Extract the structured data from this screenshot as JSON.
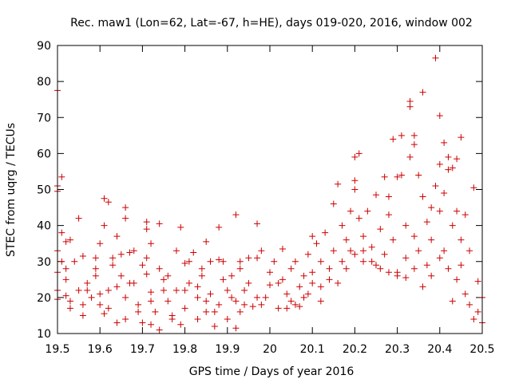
{
  "chart_data": {
    "type": "scatter",
    "title": "Rec. maw1 (Lon=62, Lat=-67, h=HE), days 019-020, 2016, window 002",
    "xlabel": "GPS time / Days of year 2016",
    "ylabel": "STEC from uqrg / TECUs",
    "xlim": [
      19.5,
      20.5
    ],
    "ylim": [
      10,
      90
    ],
    "xticks": [
      "19.5",
      "19.6",
      "19.7",
      "19.8",
      "19.9",
      "20",
      "20.1",
      "20.2",
      "20.3",
      "20.4",
      "20.5"
    ],
    "yticks": [
      "10",
      "20",
      "30",
      "40",
      "50",
      "60",
      "70",
      "80",
      "90"
    ],
    "grid": false,
    "legend": "none",
    "marker": "plus",
    "color": "#cc0000",
    "points": [
      [
        19.5,
        77.5
      ],
      [
        19.5,
        51
      ],
      [
        19.5,
        49.5
      ],
      [
        19.51,
        53.5
      ],
      [
        19.51,
        38
      ],
      [
        19.52,
        35.5
      ],
      [
        19.53,
        36
      ],
      [
        19.55,
        42
      ],
      [
        19.56,
        31.5
      ],
      [
        19.59,
        31
      ],
      [
        19.61,
        47.5
      ],
      [
        19.62,
        46.5
      ],
      [
        19.61,
        40
      ],
      [
        19.64,
        37
      ],
      [
        19.66,
        45
      ],
      [
        19.66,
        42
      ],
      [
        19.71,
        41
      ],
      [
        19.71,
        39
      ],
      [
        19.74,
        40.5
      ],
      [
        19.79,
        39.5
      ],
      [
        19.85,
        35.5
      ],
      [
        19.88,
        39.5
      ],
      [
        19.92,
        43
      ],
      [
        19.97,
        40.5
      ],
      [
        19.5,
        33
      ],
      [
        19.51,
        30
      ],
      [
        19.5,
        27
      ],
      [
        19.52,
        25
      ],
      [
        19.5,
        22
      ],
      [
        19.52,
        20.5
      ],
      [
        19.53,
        19
      ],
      [
        19.5,
        19.5
      ],
      [
        19.55,
        22
      ],
      [
        19.56,
        18
      ],
      [
        19.57,
        24
      ],
      [
        19.58,
        20
      ],
      [
        19.59,
        26
      ],
      [
        19.6,
        18
      ],
      [
        19.61,
        15.5
      ],
      [
        19.62,
        22
      ],
      [
        19.62,
        17
      ],
      [
        19.63,
        29
      ],
      [
        19.64,
        13
      ],
      [
        19.65,
        26
      ],
      [
        19.66,
        20
      ],
      [
        19.66,
        14
      ],
      [
        19.67,
        32.5
      ],
      [
        19.68,
        24
      ],
      [
        19.69,
        18
      ],
      [
        19.7,
        13
      ],
      [
        19.71,
        26.5
      ],
      [
        19.71,
        31
      ],
      [
        19.72,
        21.5
      ],
      [
        19.72,
        12.5
      ],
      [
        19.73,
        16
      ],
      [
        19.74,
        11
      ],
      [
        19.75,
        25
      ],
      [
        19.76,
        19
      ],
      [
        19.77,
        14
      ],
      [
        19.78,
        22
      ],
      [
        19.79,
        12.5
      ],
      [
        19.8,
        29.5
      ],
      [
        19.8,
        17
      ],
      [
        19.81,
        24
      ],
      [
        19.82,
        32.5
      ],
      [
        19.83,
        20
      ],
      [
        19.83,
        14
      ],
      [
        19.84,
        26
      ],
      [
        19.85,
        16
      ],
      [
        19.86,
        21
      ],
      [
        19.87,
        12
      ],
      [
        19.88,
        30.5
      ],
      [
        19.88,
        18
      ],
      [
        19.89,
        25
      ],
      [
        19.9,
        14
      ],
      [
        19.91,
        20
      ],
      [
        19.92,
        11.5
      ],
      [
        19.93,
        28
      ],
      [
        19.93,
        16
      ],
      [
        19.94,
        22
      ],
      [
        19.95,
        24
      ],
      [
        19.96,
        17.5
      ],
      [
        19.97,
        31
      ],
      [
        19.98,
        18
      ],
      [
        19.99,
        20
      ],
      [
        19.52,
        28
      ],
      [
        19.54,
        30
      ],
      [
        19.57,
        22
      ],
      [
        19.59,
        28
      ],
      [
        19.6,
        35
      ],
      [
        19.63,
        31
      ],
      [
        19.65,
        32
      ],
      [
        19.68,
        33
      ],
      [
        19.7,
        29
      ],
      [
        19.72,
        35
      ],
      [
        19.74,
        28
      ],
      [
        19.76,
        26
      ],
      [
        19.78,
        33
      ],
      [
        19.81,
        30
      ],
      [
        19.84,
        28
      ],
      [
        19.86,
        30
      ],
      [
        19.89,
        30
      ],
      [
        19.91,
        26
      ],
      [
        19.93,
        30
      ],
      [
        19.95,
        31
      ],
      [
        19.98,
        33
      ],
      [
        19.53,
        17
      ],
      [
        19.56,
        15
      ],
      [
        19.6,
        21
      ],
      [
        19.64,
        23
      ],
      [
        19.67,
        24
      ],
      [
        19.69,
        16
      ],
      [
        19.72,
        19
      ],
      [
        19.75,
        22
      ],
      [
        19.77,
        15
      ],
      [
        19.8,
        22
      ],
      [
        19.83,
        23
      ],
      [
        19.85,
        19
      ],
      [
        19.87,
        16
      ],
      [
        19.9,
        22
      ],
      [
        19.92,
        19
      ],
      [
        19.94,
        18
      ],
      [
        19.97,
        20
      ],
      [
        20.0,
        27
      ],
      [
        20.0,
        23.5
      ],
      [
        20.01,
        30
      ],
      [
        20.02,
        17
      ],
      [
        20.03,
        33.5
      ],
      [
        20.03,
        25
      ],
      [
        20.04,
        21
      ],
      [
        20.05,
        28
      ],
      [
        20.05,
        19
      ],
      [
        20.06,
        30
      ],
      [
        20.07,
        23
      ],
      [
        20.07,
        17.5
      ],
      [
        20.08,
        26
      ],
      [
        20.09,
        32
      ],
      [
        20.09,
        21
      ],
      [
        20.1,
        37
      ],
      [
        20.1,
        27
      ],
      [
        20.11,
        35
      ],
      [
        20.12,
        23
      ],
      [
        20.12,
        30
      ],
      [
        20.13,
        38
      ],
      [
        20.14,
        28
      ],
      [
        20.15,
        33
      ],
      [
        20.15,
        46
      ],
      [
        20.16,
        51.5
      ],
      [
        20.17,
        40
      ],
      [
        20.17,
        30
      ],
      [
        20.18,
        36
      ],
      [
        20.19,
        44
      ],
      [
        20.19,
        33
      ],
      [
        20.2,
        52.5
      ],
      [
        20.2,
        50
      ],
      [
        20.2,
        59
      ],
      [
        20.21,
        60
      ],
      [
        20.21,
        42
      ],
      [
        20.22,
        37
      ],
      [
        20.22,
        30
      ],
      [
        20.23,
        44
      ],
      [
        20.24,
        34
      ],
      [
        20.25,
        48.5
      ],
      [
        20.25,
        29
      ],
      [
        20.26,
        39
      ],
      [
        20.27,
        53.5
      ],
      [
        20.27,
        32
      ],
      [
        20.28,
        48
      ],
      [
        20.28,
        43
      ],
      [
        20.29,
        64
      ],
      [
        20.29,
        36
      ],
      [
        20.3,
        53.5
      ],
      [
        20.3,
        27
      ],
      [
        20.31,
        65
      ],
      [
        20.31,
        54
      ],
      [
        20.32,
        40
      ],
      [
        20.32,
        31
      ],
      [
        20.33,
        74.5
      ],
      [
        20.33,
        73
      ],
      [
        20.33,
        59
      ],
      [
        20.34,
        37
      ],
      [
        20.34,
        65
      ],
      [
        20.34,
        62.5
      ],
      [
        20.35,
        54
      ],
      [
        20.35,
        33
      ],
      [
        20.36,
        77
      ],
      [
        20.36,
        48
      ],
      [
        20.37,
        41
      ],
      [
        20.37,
        29
      ],
      [
        20.38,
        45
      ],
      [
        20.38,
        36
      ],
      [
        20.39,
        86.5
      ],
      [
        20.39,
        51
      ],
      [
        20.4,
        70.5
      ],
      [
        20.4,
        57
      ],
      [
        20.4,
        44
      ],
      [
        20.41,
        63
      ],
      [
        20.41,
        49
      ],
      [
        20.41,
        33
      ],
      [
        20.42,
        59
      ],
      [
        20.42,
        55.5
      ],
      [
        20.43,
        56
      ],
      [
        20.43,
        40
      ],
      [
        20.44,
        58.5
      ],
      [
        20.44,
        44
      ],
      [
        20.45,
        36
      ],
      [
        20.45,
        64.5
      ],
      [
        20.46,
        43
      ],
      [
        20.47,
        33
      ],
      [
        20.48,
        50.5
      ],
      [
        20.49,
        24.5
      ],
      [
        20.46,
        21
      ],
      [
        20.47,
        18
      ],
      [
        20.48,
        14
      ],
      [
        20.49,
        16
      ],
      [
        20.5,
        13
      ],
      [
        20.5,
        20
      ],
      [
        20.43,
        19
      ],
      [
        20.44,
        25
      ],
      [
        20.42,
        28
      ],
      [
        20.45,
        29
      ],
      [
        20.4,
        31
      ],
      [
        20.38,
        26
      ],
      [
        20.36,
        23
      ],
      [
        20.34,
        28
      ],
      [
        20.32,
        25.5
      ],
      [
        20.3,
        26
      ],
      [
        20.28,
        27
      ],
      [
        20.26,
        28
      ],
      [
        20.24,
        30
      ],
      [
        20.22,
        33
      ],
      [
        20.2,
        32
      ],
      [
        20.18,
        28
      ],
      [
        20.16,
        24
      ],
      [
        20.14,
        25
      ],
      [
        20.12,
        19
      ],
      [
        20.1,
        24
      ],
      [
        20.08,
        20
      ],
      [
        20.06,
        18
      ],
      [
        20.04,
        17
      ],
      [
        20.02,
        24
      ]
    ]
  }
}
